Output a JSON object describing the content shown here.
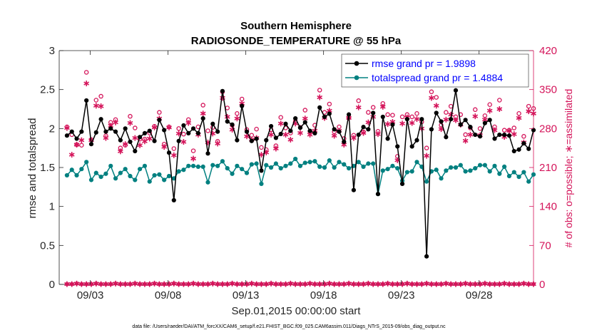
{
  "chart_data": {
    "type": "line",
    "title": "Southern Hemisphere",
    "subtitle": "RADIOSONDE_TEMPERATURE @ 55 hPa",
    "xlabel": "Sep.01,2015 00:00:00 start",
    "ylabel": "rmse and totalspread",
    "ylabel_right": "# of obs: o=possible; ∗=assimilated",
    "footnote": "data file: /Users/raeder/DAI/ATM_forcXX/CAM6_setup/f.e21.FHIST_BGC.f09_025.CAM6assim.011/Diags_NTrS_2015-09/obs_diag_output.nc",
    "xlim": [
      1,
      31.5
    ],
    "ylim": [
      0,
      3
    ],
    "ylim_right": [
      0,
      420
    ],
    "x_ticks": [
      3,
      8,
      13,
      18,
      23,
      28
    ],
    "x_tick_labels": [
      "09/03",
      "09/08",
      "09/13",
      "09/18",
      "09/23",
      "09/28"
    ],
    "y_ticks": [
      0,
      0.5,
      1,
      1.5,
      2,
      2.5,
      3
    ],
    "y_tick_labels": [
      "0",
      "0.5",
      "1",
      "1.5",
      "2",
      "2.5",
      "3"
    ],
    "y_ticks_right": [
      0,
      70,
      140,
      210,
      280,
      350,
      420
    ],
    "y_tick_labels_right": [
      "0",
      "70",
      "140",
      "210",
      "280",
      "350",
      "420"
    ],
    "colors": {
      "rmse": "#000000",
      "spread": "#008080",
      "obs": "#d4145a",
      "legend_text": "#0000ff"
    },
    "series": [
      {
        "name": "rmse grand pr = 1.9898",
        "values": [
          1.91,
          1.96,
          1.87,
          1.96,
          2.36,
          1.8,
          1.95,
          2.12,
          1.96,
          2.0,
          1.96,
          1.85,
          2.0,
          1.83,
          1.71,
          1.89,
          1.94,
          1.97,
          1.84,
          2.11,
          1.98,
          1.69,
          1.08,
          1.84,
          2.04,
          1.94,
          2.0,
          1.94,
          2.13,
          1.68,
          2.06,
          1.96,
          2.48,
          2.09,
          2.05,
          1.85,
          2.29,
          1.96,
          1.84,
          1.87,
          1.46,
          1.85,
          2.03,
          1.88,
          1.93,
          2.06,
          1.97,
          2.13,
          2.01,
          2.08,
          1.97,
          1.94,
          2.27,
          2.15,
          2.19,
          1.99,
          1.96,
          1.83,
          2.18,
          1.21,
          1.92,
          2.02,
          1.99,
          2.2,
          1.16,
          2.15,
          1.87,
          2.05,
          1.77,
          1.29,
          2.12,
          1.77,
          1.85,
          2.12,
          0.36,
          1.99,
          2.2,
          2.09,
          1.89,
          2.12,
          2.49,
          2.05,
          2.11,
          2.02,
          1.92,
          1.9,
          2.07,
          2.11,
          1.87,
          1.92,
          1.92,
          1.91,
          1.71,
          1.73,
          1.81,
          1.74,
          1.98
        ]
      },
      {
        "name": "totalspread grand pr = 1.4884",
        "values": [
          1.4,
          1.47,
          1.4,
          1.48,
          1.57,
          1.34,
          1.43,
          1.38,
          1.42,
          1.52,
          1.36,
          1.43,
          1.48,
          1.39,
          1.34,
          1.48,
          1.52,
          1.32,
          1.4,
          1.41,
          1.34,
          1.39,
          1.36,
          1.45,
          1.47,
          1.52,
          1.52,
          1.51,
          1.51,
          1.31,
          1.53,
          1.52,
          1.58,
          1.49,
          1.42,
          1.52,
          1.48,
          1.43,
          1.54,
          1.55,
          1.29,
          1.53,
          1.5,
          1.55,
          1.49,
          1.52,
          1.55,
          1.61,
          1.52,
          1.56,
          1.57,
          1.58,
          1.51,
          1.5,
          1.59,
          1.5,
          1.57,
          1.54,
          1.49,
          1.52,
          1.57,
          1.51,
          1.55,
          1.55,
          1.16,
          1.46,
          1.48,
          1.52,
          1.49,
          1.33,
          1.44,
          1.45,
          1.57,
          1.51,
          1.32,
          1.45,
          1.47,
          1.36,
          1.46,
          1.5,
          1.5,
          1.53,
          1.45,
          1.46,
          1.49,
          1.53,
          1.53,
          1.45,
          1.52,
          1.42,
          1.51,
          1.39,
          1.44,
          1.38,
          1.44,
          1.32,
          1.41
        ]
      },
      {
        "name": "possible",
        "values": [
          283,
          269,
          251,
          250,
          381,
          260,
          331,
          338,
          267,
          291,
          296,
          245,
          250,
          302,
          281,
          261,
          261,
          272,
          284,
          309,
          252,
          283,
          244,
          280,
          270,
          296,
          240,
          283,
          322,
          276,
          282,
          257,
          346,
          317,
          286,
          307,
          333,
          278,
          268,
          279,
          246,
          242,
          278,
          249,
          300,
          281,
          272,
          293,
          282,
          313,
          275,
          286,
          349,
          309,
          324,
          274,
          283,
          262,
          300,
          268,
          330,
          274,
          309,
          318,
          275,
          325,
          305,
          304,
          230,
          301,
          305,
          301,
          307,
          292,
          245,
          346,
          336,
          286,
          309,
          320,
          301,
          305,
          269,
          281,
          314,
          280,
          303,
          323,
          283,
          331,
          277,
          277,
          281,
          307,
          266,
          320,
          316
        ]
      },
      {
        "name": "assimilated",
        "values": [
          281,
          233,
          251,
          259,
          361,
          259,
          321,
          320,
          263,
          285,
          291,
          239,
          252,
          290,
          263,
          250,
          257,
          262,
          282,
          298,
          247,
          282,
          232,
          271,
          256,
          290,
          226,
          269,
          307,
          255,
          271,
          253,
          335,
          301,
          278,
          298,
          325,
          266,
          260,
          263,
          233,
          237,
          269,
          244,
          289,
          269,
          260,
          289,
          272,
          298,
          269,
          276,
          336,
          299,
          312,
          267,
          276,
          251,
          299,
          263,
          318,
          272,
          291,
          301,
          270,
          319,
          288,
          292,
          223,
          289,
          300,
          290,
          297,
          280,
          231,
          335,
          321,
          279,
          296,
          305,
          295,
          287,
          258,
          269,
          302,
          268,
          296,
          312,
          277,
          315,
          265,
          276,
          270,
          299,
          255,
          311,
          307
        ]
      }
    ],
    "legend": [
      {
        "label": "rmse grand pr = 1.9898"
      },
      {
        "label": "totalspread grand pr = 1.4884"
      }
    ],
    "legend_position": "top-right"
  }
}
